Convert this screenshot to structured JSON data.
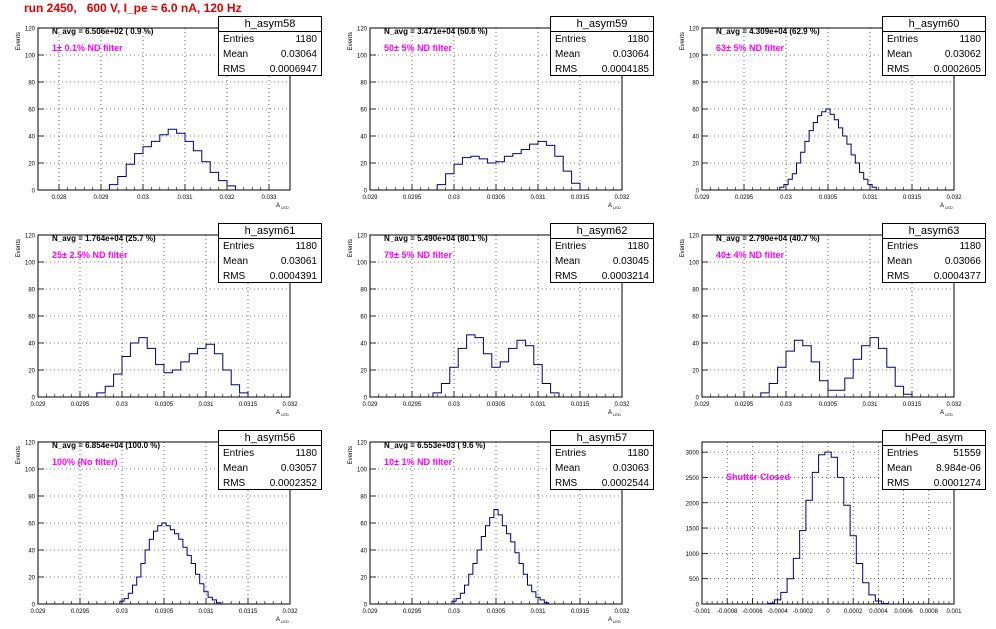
{
  "page": {
    "title": "run 2450,   600 V, I_pe ≈ 6.0 nA, 120 Hz"
  },
  "colors": {
    "title": "#e00000",
    "histogram": "#000080",
    "filter_label": "#ff00ff"
  },
  "chart_data": [
    {
      "type": "histogram",
      "stats_title": "h_asym58",
      "entries": "1180",
      "mean": "0.03064",
      "rms": "0.0006947",
      "n_avg_label": "N_avg = 6.506e+02 ( 0.9 %)",
      "filter_label": "1± 0.1% ND filter",
      "ylabel": "Events",
      "xlabel": "A",
      "xlabel_sub": "LED",
      "grid": true,
      "xlim": [
        0.0275,
        0.0335
      ],
      "ylim": [
        0,
        120
      ],
      "xticks": [
        0.028,
        0.029,
        0.03,
        0.031,
        0.032,
        0.033
      ],
      "xtick_labels": [
        "0.028",
        "0.029",
        "0.03",
        "0.031",
        "0.032",
        "0.033"
      ],
      "yticks": [
        0,
        20,
        40,
        60,
        80,
        100,
        120
      ],
      "x": [
        0.0293,
        0.0295,
        0.0297,
        0.0299,
        0.0301,
        0.0303,
        0.0305,
        0.0307,
        0.0309,
        0.0311,
        0.0313,
        0.0315,
        0.0317,
        0.0319,
        0.0321
      ],
      "values": [
        4,
        10,
        19,
        27,
        32,
        36,
        41,
        45,
        42,
        36,
        29,
        21,
        13,
        7,
        3
      ]
    },
    {
      "type": "histogram",
      "stats_title": "h_asym59",
      "entries": "1180",
      "mean": "0.03064",
      "rms": "0.0004185",
      "n_avg_label": "N_avg = 3.471e+04 (50.6 %)",
      "filter_label": "50± 5% ND filter",
      "ylabel": "Events",
      "xlabel": "A",
      "xlabel_sub": "LED",
      "grid": true,
      "xlim": [
        0.029,
        0.032
      ],
      "ylim": [
        0,
        120
      ],
      "xticks": [
        0.029,
        0.0295,
        0.03,
        0.0305,
        0.031,
        0.0315,
        0.032
      ],
      "xtick_labels": [
        "0.029",
        "0.0295",
        "0.03",
        "0.0305",
        "0.031",
        "0.0315",
        "0.032"
      ],
      "yticks": [
        0,
        20,
        40,
        60,
        80,
        100,
        120
      ],
      "x": [
        0.02985,
        0.02995,
        0.03005,
        0.03015,
        0.03025,
        0.03035,
        0.03045,
        0.03055,
        0.03065,
        0.03075,
        0.03085,
        0.03095,
        0.03105,
        0.03115,
        0.03125,
        0.03135,
        0.03145
      ],
      "values": [
        4,
        12,
        19,
        24,
        25,
        23,
        20,
        21,
        25,
        27,
        30,
        34,
        36,
        33,
        25,
        14,
        5
      ]
    },
    {
      "type": "histogram",
      "stats_title": "h_asym60",
      "entries": "1180",
      "mean": "0.03062",
      "rms": "0.0002605",
      "n_avg_label": "N_avg = 4.309e+04 (62.9 %)",
      "filter_label": "63± 5% ND filter",
      "ylabel": "Events",
      "xlabel": "A",
      "xlabel_sub": "LED",
      "grid": true,
      "xlim": [
        0.029,
        0.032
      ],
      "ylim": [
        0,
        120
      ],
      "xticks": [
        0.029,
        0.0295,
        0.03,
        0.0305,
        0.031,
        0.0315,
        0.032
      ],
      "xtick_labels": [
        "0.029",
        "0.0295",
        "0.03",
        "0.0305",
        "0.031",
        "0.0315",
        "0.032"
      ],
      "yticks": [
        0,
        20,
        40,
        60,
        80,
        100,
        120
      ],
      "x": [
        0.02995,
        0.03,
        0.03005,
        0.0301,
        0.03015,
        0.0302,
        0.03025,
        0.0303,
        0.03035,
        0.0304,
        0.03045,
        0.0305,
        0.03055,
        0.0306,
        0.03065,
        0.0307,
        0.03075,
        0.0308,
        0.03085,
        0.0309,
        0.03095,
        0.031,
        0.03105
      ],
      "values": [
        2,
        4,
        8,
        12,
        20,
        28,
        36,
        44,
        50,
        55,
        58,
        60,
        56,
        52,
        46,
        40,
        34,
        26,
        20,
        13,
        8,
        4,
        2
      ]
    },
    {
      "type": "histogram",
      "stats_title": "h_asym61",
      "entries": "1180",
      "mean": "0.03061",
      "rms": "0.0004391",
      "n_avg_label": "N_avg = 1.764e+04 (25.7 %)",
      "filter_label": "25± 2.5% ND filter",
      "ylabel": "Events",
      "xlabel": "A",
      "xlabel_sub": "LED",
      "grid": true,
      "xlim": [
        0.029,
        0.032
      ],
      "ylim": [
        0,
        120
      ],
      "xticks": [
        0.029,
        0.0295,
        0.03,
        0.0305,
        0.031,
        0.0315,
        0.032
      ],
      "xtick_labels": [
        "0.029",
        "0.0295",
        "0.03",
        "0.0305",
        "0.031",
        "0.0315",
        "0.032"
      ],
      "yticks": [
        0,
        20,
        40,
        60,
        80,
        100,
        120
      ],
      "x": [
        0.02975,
        0.02985,
        0.02995,
        0.03005,
        0.03015,
        0.03025,
        0.03035,
        0.03045,
        0.03055,
        0.03065,
        0.03075,
        0.03085,
        0.03095,
        0.03105,
        0.03115,
        0.03125,
        0.03135,
        0.03145
      ],
      "values": [
        3,
        8,
        17,
        30,
        40,
        44,
        36,
        24,
        18,
        20,
        26,
        32,
        36,
        39,
        32,
        20,
        9,
        3
      ]
    },
    {
      "type": "histogram",
      "stats_title": "h_asym62",
      "entries": "1180",
      "mean": "0.03045",
      "rms": "0.0003214",
      "n_avg_label": "N_avg = 5.490e+04 (80.1 %)",
      "filter_label": "79± 5% ND filter",
      "ylabel": "Events",
      "xlabel": "A",
      "xlabel_sub": "LED",
      "grid": true,
      "xlim": [
        0.029,
        0.032
      ],
      "ylim": [
        0,
        120
      ],
      "xticks": [
        0.029,
        0.0295,
        0.03,
        0.0305,
        0.031,
        0.0315,
        0.032
      ],
      "xtick_labels": [
        "0.029",
        "0.0295",
        "0.03",
        "0.0305",
        "0.031",
        "0.0315",
        "0.032"
      ],
      "yticks": [
        0,
        20,
        40,
        60,
        80,
        100,
        120
      ],
      "x": [
        0.0298,
        0.0299,
        0.03,
        0.0301,
        0.0302,
        0.0303,
        0.0304,
        0.0305,
        0.0306,
        0.0307,
        0.0308,
        0.0309,
        0.031,
        0.0311,
        0.0312
      ],
      "values": [
        3,
        10,
        22,
        36,
        46,
        44,
        32,
        22,
        26,
        36,
        42,
        38,
        24,
        10,
        3
      ]
    },
    {
      "type": "histogram",
      "stats_title": "h_asym63",
      "entries": "1180",
      "mean": "0.03066",
      "rms": "0.0004377",
      "n_avg_label": "N_avg = 2.790e+04 (40.7 %)",
      "filter_label": "40± 4% ND filter",
      "ylabel": "Events",
      "xlabel": "A",
      "xlabel_sub": "LED",
      "grid": true,
      "xlim": [
        0.029,
        0.032
      ],
      "ylim": [
        0,
        120
      ],
      "xticks": [
        0.029,
        0.0295,
        0.03,
        0.0305,
        0.031,
        0.0315,
        0.032
      ],
      "xtick_labels": [
        "0.029",
        "0.0295",
        "0.03",
        "0.0305",
        "0.031",
        "0.0315",
        "0.032"
      ],
      "yticks": [
        0,
        20,
        40,
        60,
        80,
        100,
        120
      ],
      "x": [
        0.02975,
        0.02985,
        0.02995,
        0.03005,
        0.03015,
        0.03025,
        0.03035,
        0.03045,
        0.03055,
        0.03065,
        0.03075,
        0.03085,
        0.03095,
        0.03105,
        0.03115,
        0.03125,
        0.03135,
        0.03145
      ],
      "values": [
        3,
        10,
        22,
        34,
        42,
        38,
        26,
        12,
        5,
        5,
        14,
        28,
        38,
        44,
        36,
        22,
        8,
        2
      ]
    },
    {
      "type": "histogram",
      "stats_title": "h_asym56",
      "entries": "1180",
      "mean": "0.03057",
      "rms": "0.0002352",
      "n_avg_label": "N_avg = 6.854e+04 (100.0 %)",
      "filter_label": "100% (No filter)",
      "ylabel": "Events",
      "xlabel": "A",
      "xlabel_sub": "LED",
      "grid": true,
      "xlim": [
        0.029,
        0.032
      ],
      "ylim": [
        0,
        120
      ],
      "xticks": [
        0.029,
        0.0295,
        0.03,
        0.0305,
        0.031,
        0.0315,
        0.032
      ],
      "xtick_labels": [
        "0.029",
        "0.0295",
        "0.03",
        "0.0305",
        "0.031",
        "0.0315",
        "0.032"
      ],
      "yticks": [
        0,
        20,
        40,
        60,
        80,
        100,
        120
      ],
      "x": [
        0.03,
        0.03005,
        0.0301,
        0.03015,
        0.0302,
        0.03025,
        0.0303,
        0.03035,
        0.0304,
        0.03045,
        0.0305,
        0.03055,
        0.0306,
        0.03065,
        0.0307,
        0.03075,
        0.0308,
        0.03085,
        0.0309,
        0.03095,
        0.031,
        0.03105,
        0.0311,
        0.03115
      ],
      "values": [
        2,
        4,
        8,
        14,
        20,
        30,
        40,
        48,
        54,
        58,
        60,
        58,
        55,
        52,
        48,
        42,
        36,
        30,
        22,
        15,
        9,
        5,
        3,
        1
      ]
    },
    {
      "type": "histogram",
      "stats_title": "h_asym57",
      "entries": "1180",
      "mean": "0.03063",
      "rms": "0.0002544",
      "n_avg_label": "N_avg = 6.553e+03 ( 9.6 %)",
      "filter_label": "10± 1% ND filter",
      "ylabel": "Events",
      "xlabel": "A",
      "xlabel_sub": "LED",
      "grid": true,
      "xlim": [
        0.029,
        0.032
      ],
      "ylim": [
        0,
        120
      ],
      "xticks": [
        0.029,
        0.0295,
        0.03,
        0.0305,
        0.031,
        0.0315,
        0.032
      ],
      "xtick_labels": [
        "0.029",
        "0.0295",
        "0.03",
        "0.0305",
        "0.031",
        "0.0315",
        "0.032"
      ],
      "yticks": [
        0,
        20,
        40,
        60,
        80,
        100,
        120
      ],
      "x": [
        0.03,
        0.03005,
        0.0301,
        0.03015,
        0.0302,
        0.03025,
        0.0303,
        0.03035,
        0.0304,
        0.03045,
        0.0305,
        0.03055,
        0.0306,
        0.03065,
        0.0307,
        0.03075,
        0.0308,
        0.03085,
        0.0309,
        0.03095,
        0.031,
        0.03105,
        0.0311
      ],
      "values": [
        2,
        4,
        8,
        14,
        22,
        30,
        40,
        50,
        58,
        64,
        70,
        66,
        58,
        52,
        46,
        38,
        30,
        22,
        14,
        9,
        5,
        3,
        1
      ]
    },
    {
      "type": "histogram",
      "stats_title": "hPed_asym",
      "entries": "51559",
      "mean": "8.984e-06",
      "rms": "0.0001274",
      "annotation": "Shutter Closed",
      "ylabel": "",
      "xlabel": "",
      "grid": true,
      "xlim": [
        -0.001,
        0.001
      ],
      "ylim": [
        0,
        3200
      ],
      "xticks": [
        -0.001,
        -0.0008,
        -0.0006,
        -0.0004,
        -0.0002,
        0,
        0.0002,
        0.0004,
        0.0006,
        0.0008,
        0.001
      ],
      "xtick_labels": [
        "-0.001",
        "-0.0008",
        "-0.0006",
        "-0.0004",
        "-0.0002",
        "0",
        "0.0002",
        "0.0004",
        "0.0006",
        "0.0008",
        "0.001"
      ],
      "yticks": [
        0,
        500,
        1000,
        1500,
        2000,
        2500,
        3000
      ],
      "x": [
        -0.0005,
        -0.00045,
        -0.0004,
        -0.00035,
        -0.0003,
        -0.00025,
        -0.0002,
        -0.00015,
        -0.0001,
        -5e-05,
        0,
        5e-05,
        0.0001,
        0.00015,
        0.0002,
        0.00025,
        0.0003,
        0.00035,
        0.0004,
        0.00045
      ],
      "values": [
        0,
        15,
        80,
        230,
        500,
        900,
        1450,
        2050,
        2600,
        2950,
        3000,
        2900,
        2500,
        1950,
        1350,
        800,
        420,
        180,
        60,
        10
      ]
    }
  ]
}
